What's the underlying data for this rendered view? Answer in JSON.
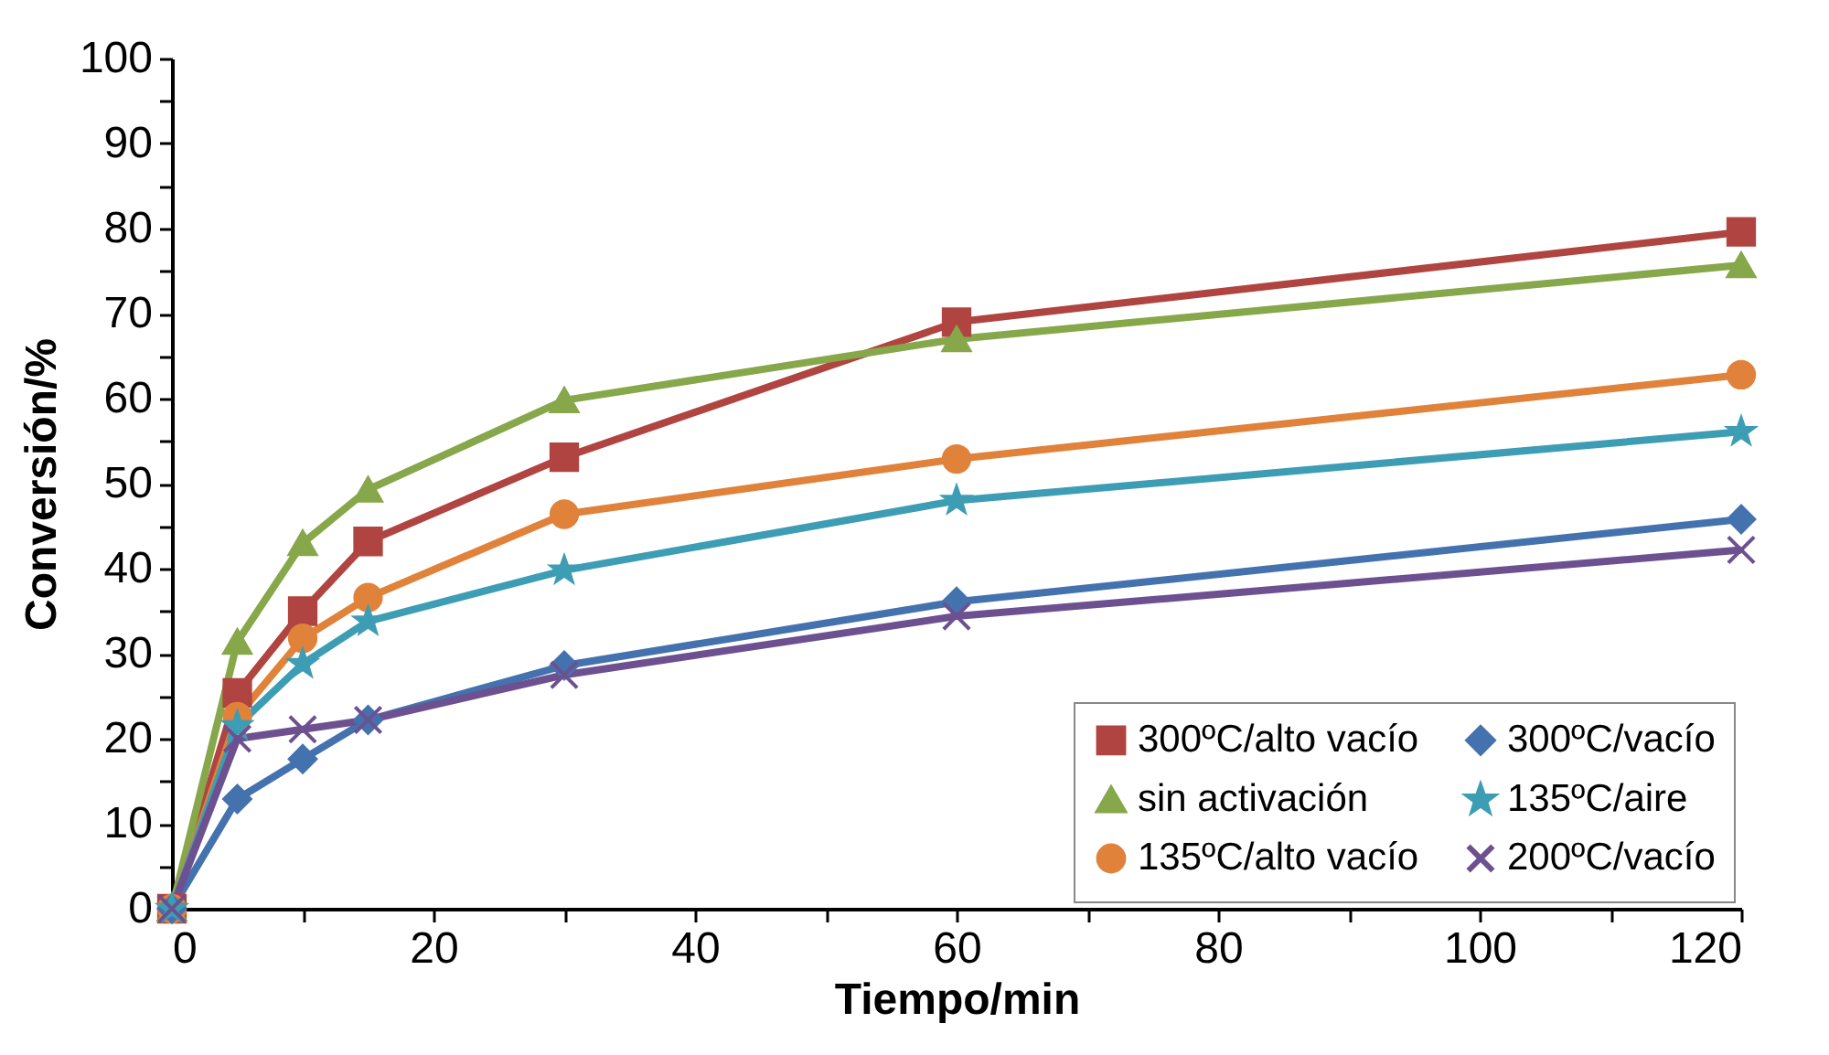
{
  "chart_data": {
    "type": "line",
    "xlabel": "Tiempo/min",
    "ylabel": "Conversión/%",
    "x": [
      0,
      5,
      10,
      15,
      30,
      60,
      120
    ],
    "series": [
      {
        "name": "300ºC/alto vacío",
        "color": "#b04440",
        "marker": "square",
        "values": [
          0,
          25.4,
          35,
          43.2,
          53.1,
          69,
          79.6
        ]
      },
      {
        "name": "sin activación",
        "color": "#86a74a",
        "marker": "triangle",
        "values": [
          0,
          31.4,
          43,
          49.3,
          59.8,
          67,
          75.7
        ]
      },
      {
        "name": "135ºC/alto vacío",
        "color": "#e0823a",
        "marker": "circle",
        "values": [
          0,
          22.6,
          31.8,
          36.6,
          46.4,
          52.9,
          62.8
        ]
      },
      {
        "name": "300ºC/vacío",
        "color": "#4472ae",
        "marker": "diamond",
        "values": [
          0,
          12.9,
          17.6,
          22.2,
          28.6,
          36.1,
          45.8
        ]
      },
      {
        "name": "135ºC/aire",
        "color": "#3d9db4",
        "marker": "star",
        "values": [
          0,
          21.5,
          28.8,
          33.8,
          39.8,
          48,
          56.1
        ]
      },
      {
        "name": "200ºC/vacío",
        "color": "#6d5090",
        "marker": "cross",
        "values": [
          0,
          20,
          21.1,
          22.2,
          27.5,
          34.4,
          42.2
        ]
      }
    ],
    "xlim": [
      0,
      120
    ],
    "xticks": [
      0,
      {
        "value": 10,
        "label": null
      },
      20,
      {
        "value": 30,
        "label": null
      },
      40,
      {
        "value": 50,
        "label": null
      },
      60,
      {
        "value": 70,
        "label": null
      },
      80,
      {
        "value": 90,
        "label": null
      },
      100,
      {
        "value": 110,
        "label": null
      },
      120
    ],
    "ylim": [
      0,
      100
    ],
    "yticks": [
      0,
      {
        "value": 5,
        "label": null
      },
      10,
      {
        "value": 15,
        "label": null
      },
      20,
      {
        "value": 25,
        "label": null
      },
      30,
      {
        "value": 35,
        "label": null
      },
      40,
      {
        "value": 45,
        "label": null
      },
      50,
      {
        "value": 55,
        "label": null
      },
      60,
      {
        "value": 65,
        "label": null
      },
      70,
      {
        "value": 75,
        "label": null
      },
      80,
      {
        "value": 85,
        "label": null
      },
      90,
      {
        "value": 95,
        "label": null
      },
      100
    ],
    "grid": false,
    "legend": "bottom right",
    "line_style": "solid"
  }
}
